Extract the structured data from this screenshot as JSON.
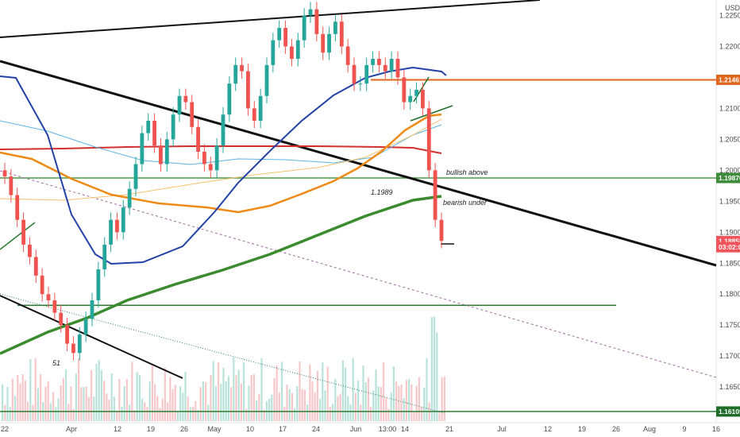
{
  "chart_data": {
    "type": "candlestick",
    "currency": "USD",
    "ylim": [
      1.1595,
      1.2275
    ],
    "y_ticks": [
      "1.22500",
      "1.22000",
      "1.21500",
      "1.21000",
      "1.20500",
      "1.20000",
      "1.19500",
      "1.19000",
      "1.18500",
      "1.18000",
      "1.17500",
      "1.17000",
      "1.16500"
    ],
    "x_ticks": [
      "22",
      "Apr",
      "12",
      "19",
      "26",
      "May",
      "10",
      "17",
      "24",
      "Jun",
      "13:00",
      "14",
      "21",
      "Jul",
      "12",
      "19",
      "26",
      "Aug",
      "9",
      "16"
    ],
    "price_tags": [
      {
        "label": "1.21461",
        "value": 1.21461,
        "color": "#e0661e"
      },
      {
        "label": "1.19876",
        "value": 1.19876,
        "color": "#3c8c3c"
      },
      {
        "label": "1.18858",
        "value": 1.18858,
        "color": "#f2545b"
      },
      {
        "label": "03:02:06",
        "value": 1.18758,
        "color": "#f2545b"
      },
      {
        "label": "1.16105",
        "value": 1.16105,
        "color": "#1e6e2a"
      }
    ],
    "horizontal_levels": [
      {
        "value": 1.21461,
        "color": "#e0661e"
      },
      {
        "value": 1.19876,
        "color": "#4c9c4c"
      },
      {
        "value": 1.1782,
        "color": "#2e7d32"
      },
      {
        "value": 1.16105,
        "color": "#2e7d32"
      }
    ],
    "annotations": [
      {
        "text": "bullish above",
        "x": "Jun 21",
        "y": 1.2015
      },
      {
        "text": "bearish under",
        "x": "Jun 21",
        "y": 1.196
      },
      {
        "text": "1.1989",
        "x": "Jun 7",
        "y": 1.1989
      },
      {
        "text": "51",
        "x": "Mar 29",
        "y": 1.1695
      }
    ],
    "candles_close": [
      1.199,
      1.196,
      1.192,
      1.188,
      1.186,
      1.183,
      1.18,
      1.179,
      1.177,
      1.175,
      1.172,
      1.1705,
      1.1735,
      1.176,
      1.179,
      1.184,
      1.188,
      1.192,
      1.19,
      1.194,
      1.197,
      1.201,
      1.206,
      1.208,
      1.204,
      1.201,
      1.205,
      1.209,
      1.212,
      1.211,
      1.207,
      1.203,
      1.201,
      1.2,
      1.204,
      1.209,
      1.214,
      1.217,
      1.216,
      1.21,
      1.208,
      1.212,
      1.217,
      1.221,
      1.223,
      1.22,
      1.218,
      1.221,
      1.225,
      1.226,
      1.222,
      1.219,
      1.222,
      1.224,
      1.22,
      1.217,
      1.214,
      1.214,
      1.217,
      1.218,
      1.217,
      1.216,
      1.218,
      1.215,
      1.211,
      1.212,
      1.213,
      1.21,
      1.2,
      1.192,
      1.1886
    ]
  }
}
